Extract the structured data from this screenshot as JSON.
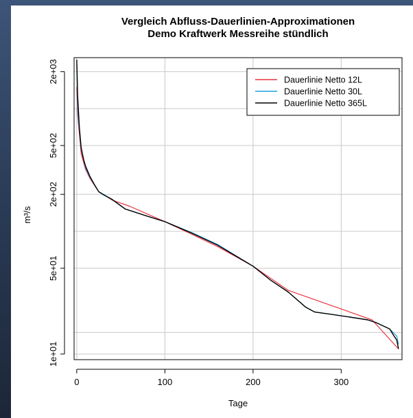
{
  "chart_data": {
    "type": "line",
    "title": "Vergleich Abfluss-Dauerlinien-Approximationen",
    "subtitle": "Demo Kraftwerk Messreihe stündlich",
    "xlabel": "Tage",
    "ylabel": "m³/s",
    "xlim": [
      -3,
      369
    ],
    "ylim": [
      9,
      2600
    ],
    "y_scale": "log",
    "grid": true,
    "x_ticks": [
      0,
      100,
      200,
      300
    ],
    "x_tick_labels": [
      "0",
      "100",
      "200",
      "300"
    ],
    "y_ticks": [
      10,
      50,
      200,
      500,
      2000
    ],
    "y_tick_labels": [
      "1e+01",
      "5e+01",
      "2e+02",
      "5e+02",
      "2e+03"
    ],
    "y_grid": [
      10,
      15,
      50,
      100,
      200,
      500,
      1000,
      2000
    ],
    "legend_position": "top-right",
    "series": [
      {
        "name": "Dauerlinie Netto 12L",
        "color": "#e8323e",
        "x": [
          0,
          1,
          5,
          10,
          15,
          25,
          40,
          60,
          100,
          130,
          160,
          200,
          240,
          335,
          365
        ],
        "y": [
          1500,
          900,
          430,
          320,
          270,
          210,
          180,
          160,
          120,
          95,
          75,
          52,
          33,
          19,
          11
        ]
      },
      {
        "name": "Dauerlinie Netto 30L",
        "color": "#1e9fe0",
        "x": [
          0,
          1,
          2,
          5,
          10,
          15,
          20,
          25,
          30,
          40,
          55,
          60,
          80,
          100,
          130,
          160,
          200,
          220,
          240,
          260,
          270,
          290,
          310,
          330,
          340,
          355,
          363,
          365
        ],
        "y": [
          2300,
          1100,
          800,
          470,
          330,
          275,
          240,
          210,
          198,
          182,
          152,
          148,
          133,
          120,
          98,
          78,
          52,
          40,
          32,
          24,
          22,
          21,
          20,
          19,
          18,
          16,
          14,
          12
        ]
      },
      {
        "name": "Dauerlinie Netto 365L",
        "color": "#000000",
        "x": [
          0,
          1,
          2,
          3,
          5,
          8,
          10,
          15,
          20,
          25,
          30,
          40,
          55,
          60,
          80,
          100,
          130,
          160,
          200,
          220,
          240,
          260,
          270,
          290,
          310,
          330,
          340,
          355,
          360,
          363,
          365
        ],
        "y": [
          2500,
          1300,
          950,
          700,
          480,
          380,
          340,
          280,
          240,
          210,
          200,
          182,
          152,
          148,
          133,
          120,
          97,
          77,
          52,
          40,
          32,
          24,
          22,
          21,
          20,
          19,
          18,
          16,
          14,
          13,
          11
        ]
      }
    ]
  }
}
